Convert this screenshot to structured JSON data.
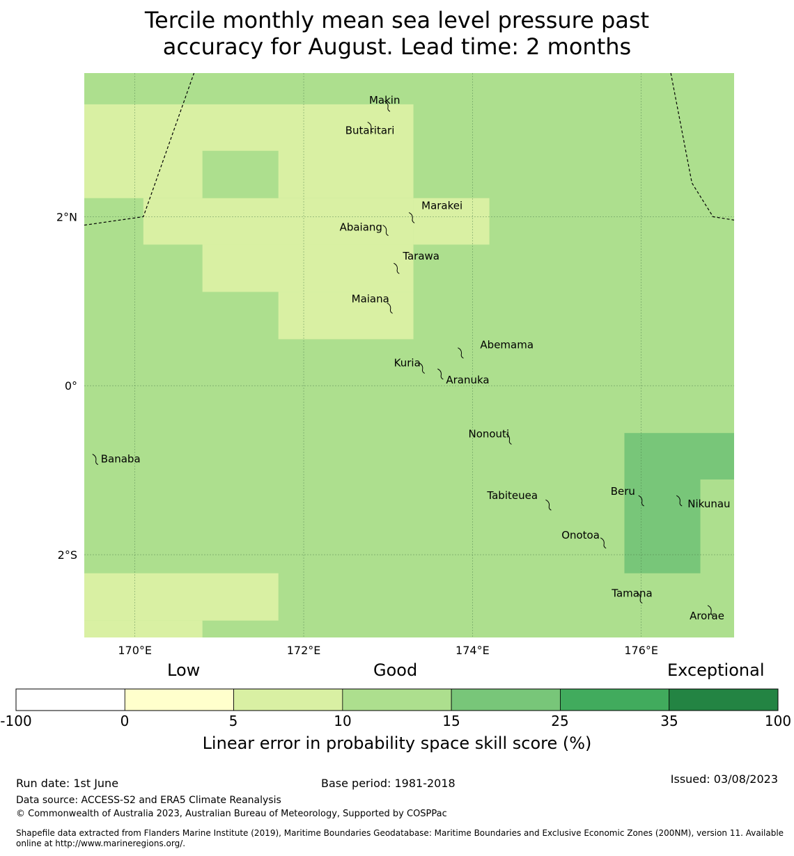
{
  "title_line1": "Tercile monthly mean sea level pressure past",
  "title_line2": "accuracy for August. Lead time: 2 months",
  "map": {
    "lon_range": [
      169.4,
      177.1
    ],
    "lat_range": [
      -2.98,
      3.7
    ],
    "lon_ticks": [
      {
        "value": 170,
        "label": "170°E"
      },
      {
        "value": 172,
        "label": "172°E"
      },
      {
        "value": 174,
        "label": "174°E"
      },
      {
        "value": 176,
        "label": "176°E"
      }
    ],
    "lat_ticks": [
      {
        "value": 2,
        "label": "2°N"
      },
      {
        "value": 0,
        "label": "0°"
      },
      {
        "value": -2,
        "label": "2°S"
      }
    ],
    "background_color": "#addf8e",
    "skill_regions": [
      {
        "color": "#d9f0a3",
        "lon": [
          169.4,
          173.3
        ],
        "lat": [
          2.22,
          3.33
        ]
      },
      {
        "color": "#d9f0a3",
        "lon": [
          170.1,
          173.3
        ],
        "lat": [
          1.67,
          2.22
        ]
      },
      {
        "color": "#d9f0a3",
        "lon": [
          173.3,
          174.2
        ],
        "lat": [
          1.67,
          2.22
        ]
      },
      {
        "color": "#d9f0a3",
        "lon": [
          170.8,
          173.3
        ],
        "lat": [
          1.11,
          1.67
        ]
      },
      {
        "color": "#d9f0a3",
        "lon": [
          171.7,
          173.3
        ],
        "lat": [
          0.55,
          1.11
        ]
      },
      {
        "color": "#addf8e",
        "lon": [
          170.8,
          171.7
        ],
        "lat": [
          2.22,
          2.78
        ]
      },
      {
        "color": "#78c679",
        "lon": [
          175.8,
          177.1
        ],
        "lat": [
          -1.11,
          -0.56
        ]
      },
      {
        "color": "#78c679",
        "lon": [
          175.8,
          176.7
        ],
        "lat": [
          -2.22,
          -1.11
        ]
      },
      {
        "color": "#d9f0a3",
        "lon": [
          169.4,
          171.7
        ],
        "lat": [
          -2.78,
          -2.22
        ]
      },
      {
        "color": "#d9f0a3",
        "lon": [
          169.4,
          170.8
        ],
        "lat": [
          -2.98,
          -2.78
        ]
      }
    ],
    "islands": [
      {
        "name": "Makin",
        "lon": 172.99,
        "lat": 3.32,
        "dx": -26,
        "dy": -7
      },
      {
        "name": "Butaritari",
        "lon": 172.79,
        "lat": 3.07,
        "dx": -36,
        "dy": 6
      },
      {
        "name": "Marakei",
        "lon": 173.28,
        "lat": 2.0,
        "dx": 14,
        "dy": -16
      },
      {
        "name": "Abaiang",
        "lon": 172.97,
        "lat": 1.85,
        "dx": -66,
        "dy": -3
      },
      {
        "name": "Tarawa",
        "lon": 173.1,
        "lat": 1.4,
        "dx": 9,
        "dy": -16
      },
      {
        "name": "Maiana",
        "lon": 173.02,
        "lat": 0.93,
        "dx": -55,
        "dy": -12
      },
      {
        "name": "Abemama",
        "lon": 173.86,
        "lat": 0.4,
        "dx": 28,
        "dy": -10
      },
      {
        "name": "Kuria",
        "lon": 173.4,
        "lat": 0.22,
        "dx": -40,
        "dy": -6
      },
      {
        "name": "Aranuka",
        "lon": 173.62,
        "lat": 0.15,
        "dx": 8,
        "dy": 10
      },
      {
        "name": "Nonouti",
        "lon": 174.43,
        "lat": -0.62,
        "dx": -58,
        "dy": -6
      },
      {
        "name": "Banaba",
        "lon": 169.53,
        "lat": -0.86,
        "dx": 8,
        "dy": 1
      },
      {
        "name": "Tabiteuea",
        "lon": 174.9,
        "lat": -1.4,
        "dx": -88,
        "dy": -12
      },
      {
        "name": "Beru",
        "lon": 176.0,
        "lat": -1.35,
        "dx": -44,
        "dy": -12
      },
      {
        "name": "Nikunau",
        "lon": 176.45,
        "lat": -1.35,
        "dx": 12,
        "dy": 6
      },
      {
        "name": "Onotoa",
        "lon": 175.55,
        "lat": -1.85,
        "dx": -60,
        "dy": -10
      },
      {
        "name": "Tamana",
        "lon": 175.98,
        "lat": -2.5,
        "dx": -40,
        "dy": -5
      },
      {
        "name": "Arorae",
        "lon": 176.82,
        "lat": -2.65,
        "dx": -30,
        "dy": 9
      }
    ],
    "eez_boundary_west": [
      [
        169.4,
        1.9
      ],
      [
        170.1,
        2.0
      ],
      [
        170.7,
        3.7
      ]
    ],
    "eez_boundary_east": [
      [
        176.35,
        3.7
      ],
      [
        176.6,
        2.4
      ],
      [
        176.85,
        2.0
      ],
      [
        177.1,
        1.96
      ]
    ]
  },
  "colorbar": {
    "categories": [
      "Low",
      "Good",
      "Exceptional"
    ],
    "ticks": [
      "-100",
      "0",
      "5",
      "10",
      "15",
      "25",
      "35",
      "100"
    ],
    "colors": [
      "#ffffff",
      "#ffffcc",
      "#d9f0a3",
      "#addf8e",
      "#78c679",
      "#41ab5d",
      "#238443"
    ],
    "label": "Linear error in probability space skill score (%)"
  },
  "footer": {
    "run_date": "Run date: 1st June",
    "base_period": "Base period: 1981-2018",
    "issued": "Issued: 03/08/2023",
    "data_source": "Data source: ACCESS-S2 and ERA5 Climate Reanalysis",
    "copyright": "© Commonwealth of Australia 2023, Australian Bureau of Meteorology, Supported by COSPPac",
    "shapefile_note": "Shapefile data extracted from Flanders Marine Institute (2019), Maritime Boundaries Geodatabase: Maritime Boundaries and Exclusive Economic Zones (200NM), version 11. Available online at http://www.marineregions.org/."
  }
}
